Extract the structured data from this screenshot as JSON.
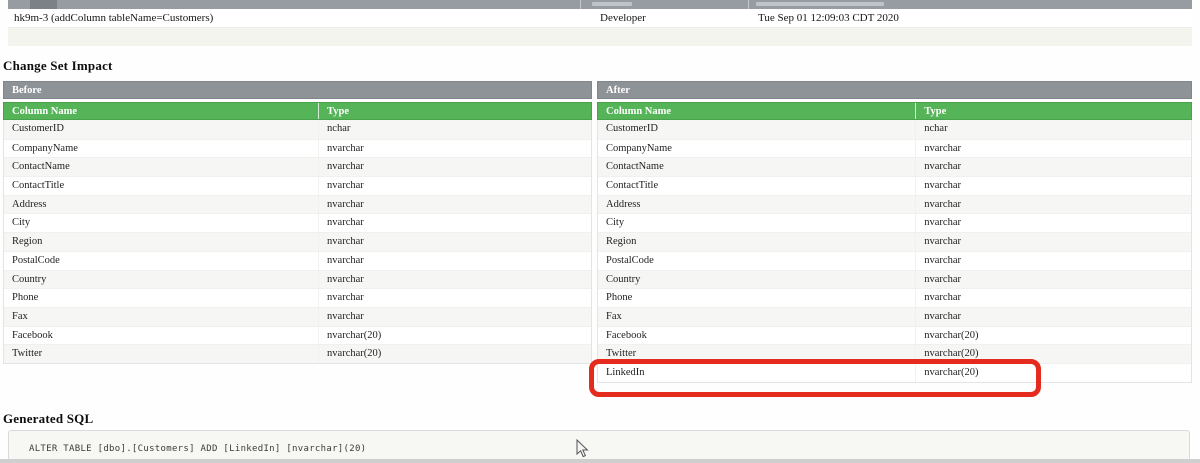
{
  "changeset_row": {
    "id": "hk9m-3 (addColumn tableName=Customers)",
    "author": "Developer",
    "date_executed": "Tue Sep 01 12:09:03 CDT 2020"
  },
  "sections": {
    "impact_title": "Change Set Impact",
    "sql_title": "Generated SQL"
  },
  "impact": {
    "before": {
      "panel_label": "Before",
      "headers": [
        "Column Name",
        "Type"
      ],
      "rows": [
        [
          "CustomerID",
          "nchar"
        ],
        [
          "CompanyName",
          "nvarchar"
        ],
        [
          "ContactName",
          "nvarchar"
        ],
        [
          "ContactTitle",
          "nvarchar"
        ],
        [
          "Address",
          "nvarchar"
        ],
        [
          "City",
          "nvarchar"
        ],
        [
          "Region",
          "nvarchar"
        ],
        [
          "PostalCode",
          "nvarchar"
        ],
        [
          "Country",
          "nvarchar"
        ],
        [
          "Phone",
          "nvarchar"
        ],
        [
          "Fax",
          "nvarchar"
        ],
        [
          "Facebook",
          "nvarchar(20)"
        ],
        [
          "Twitter",
          "nvarchar(20)"
        ]
      ]
    },
    "after": {
      "panel_label": "After",
      "headers": [
        "Column Name",
        "Type"
      ],
      "rows": [
        [
          "CustomerID",
          "nchar"
        ],
        [
          "CompanyName",
          "nvarchar"
        ],
        [
          "ContactName",
          "nvarchar"
        ],
        [
          "ContactTitle",
          "nvarchar"
        ],
        [
          "Address",
          "nvarchar"
        ],
        [
          "City",
          "nvarchar"
        ],
        [
          "Region",
          "nvarchar"
        ],
        [
          "PostalCode",
          "nvarchar"
        ],
        [
          "Country",
          "nvarchar"
        ],
        [
          "Phone",
          "nvarchar"
        ],
        [
          "Fax",
          "nvarchar"
        ],
        [
          "Facebook",
          "nvarchar(20)"
        ],
        [
          "Twitter",
          "nvarchar(20)"
        ],
        [
          "LinkedIn",
          "nvarchar(20)"
        ]
      ],
      "highlighted_row": "LinkedIn"
    }
  },
  "generated_sql": {
    "code": "ALTER TABLE [dbo].[Customers] ADD [LinkedIn] [nvarchar](20)"
  },
  "colors": {
    "table_header_green": "#54b457",
    "panel_header_gray": "#8e9397",
    "highlight_red": "#e52b1e",
    "row_stripe": "#f6f6f5"
  }
}
